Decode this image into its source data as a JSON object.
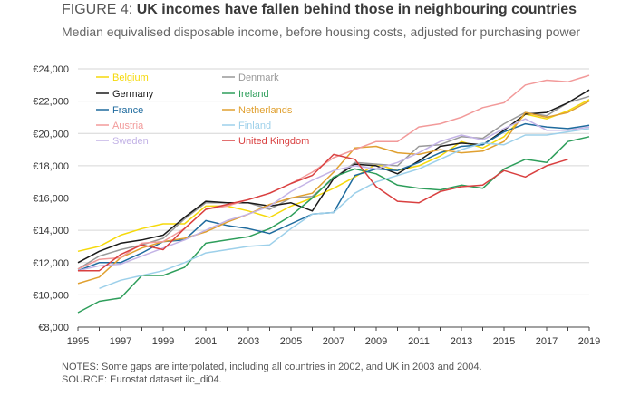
{
  "figure": {
    "number": "FIGURE 4:",
    "title": "UK incomes have fallen behind those in neighbouring countries",
    "subtitle": "Median equivalised disposable income, before housing costs, adjusted for purchasing power"
  },
  "notes": [
    "NOTES: Some gaps are interpolated, including all countries in 2002, and UK in 2003 and 2004.",
    "SOURCE: Eurostat dataset ilc_di04."
  ],
  "chart_data": {
    "type": "line",
    "title": "UK incomes have fallen behind those in neighbouring countries",
    "subtitle": "Median equivalised disposable income, before housing costs, adjusted for purchasing power",
    "xlabel": "",
    "ylabel": "",
    "xlim": [
      1995,
      2019
    ],
    "ylim": [
      8000,
      24000
    ],
    "x_ticks": [
      1995,
      1997,
      1999,
      2001,
      2003,
      2005,
      2007,
      2009,
      2011,
      2013,
      2015,
      2017,
      2019
    ],
    "y_ticks": [
      8000,
      10000,
      12000,
      14000,
      16000,
      18000,
      20000,
      22000,
      24000
    ],
    "y_tick_labels": [
      "€8,000",
      "€10,000",
      "€12,000",
      "€14,000",
      "€16,000",
      "€18,000",
      "€20,000",
      "€22,000",
      "€24,000"
    ],
    "grid": "horizontal",
    "legend_position": "top-left",
    "series": [
      {
        "name": "Belgium",
        "color": "#f5d90a",
        "x": [
          1995,
          1996,
          1997,
          1998,
          1999,
          2000,
          2001,
          2002,
          2003,
          2004,
          2005,
          2006,
          2007,
          2008,
          2009,
          2010,
          2011,
          2012,
          2013,
          2014,
          2015,
          2016,
          2017,
          2018,
          2019
        ],
        "y": [
          12700,
          13000,
          13700,
          14100,
          14400,
          14400,
          15500,
          15500,
          15200,
          14800,
          15500,
          16000,
          16600,
          17300,
          18100,
          17700,
          18000,
          18600,
          19500,
          19100,
          19800,
          21200,
          20900,
          21400,
          22100
        ]
      },
      {
        "name": "Denmark",
        "color": "#999999",
        "x": [
          1995,
          1996,
          1997,
          1998,
          1999,
          2000,
          2001,
          2002,
          2003,
          2004,
          2005,
          2006,
          2007,
          2008,
          2009,
          2010,
          2011,
          2012,
          2013,
          2014,
          2015,
          2016,
          2017,
          2018,
          2019
        ],
        "y": [
          11600,
          12400,
          12800,
          13100,
          13500,
          14700,
          15700,
          15700,
          15700,
          15300,
          16000,
          16100,
          17200,
          18200,
          18100,
          18000,
          19200,
          19300,
          19800,
          19700,
          20600,
          21300,
          21100,
          21900,
          22300
        ]
      },
      {
        "name": "Germany",
        "color": "#1a1a1a",
        "x": [
          1995,
          1996,
          1997,
          1998,
          1999,
          2000,
          2001,
          2002,
          2003,
          2004,
          2005,
          2006,
          2007,
          2008,
          2009,
          2010,
          2011,
          2012,
          2013,
          2014,
          2015,
          2016,
          2017,
          2018,
          2019
        ],
        "y": [
          12000,
          12700,
          13200,
          13400,
          13700,
          14800,
          15800,
          15700,
          15700,
          15500,
          15700,
          15200,
          17200,
          18100,
          18000,
          17500,
          18300,
          19200,
          19400,
          19300,
          20200,
          21200,
          21300,
          21900,
          22700
        ]
      },
      {
        "name": "Ireland",
        "color": "#2e9e5b",
        "x": [
          1995,
          1996,
          1997,
          1998,
          1999,
          2000,
          2001,
          2002,
          2003,
          2004,
          2005,
          2006,
          2007,
          2008,
          2009,
          2010,
          2011,
          2012,
          2013,
          2014,
          2015,
          2016,
          2017,
          2018,
          2019
        ],
        "y": [
          8900,
          9600,
          9800,
          11200,
          11200,
          11700,
          13200,
          13400,
          13600,
          14100,
          14900,
          16000,
          17300,
          17800,
          17500,
          16800,
          16600,
          16500,
          16800,
          16600,
          17800,
          18400,
          18200,
          19500,
          19800
        ]
      },
      {
        "name": "France",
        "color": "#1f6b9e",
        "x": [
          1995,
          1996,
          1997,
          1998,
          1999,
          2000,
          2001,
          2002,
          2003,
          2004,
          2005,
          2006,
          2007,
          2008,
          2009,
          2010,
          2011,
          2012,
          2013,
          2014,
          2015,
          2016,
          2017,
          2018,
          2019
        ],
        "y": [
          11500,
          12000,
          12000,
          12600,
          13300,
          13400,
          14600,
          14300,
          14100,
          13800,
          14400,
          15000,
          15100,
          17400,
          17800,
          17700,
          18200,
          18800,
          19200,
          19300,
          20100,
          20600,
          20400,
          20300,
          20500
        ]
      },
      {
        "name": "Netherlands",
        "color": "#e0a030",
        "x": [
          1995,
          1996,
          1997,
          1998,
          1999,
          2000,
          2001,
          2002,
          2003,
          2004,
          2005,
          2006,
          2007,
          2008,
          2009,
          2010,
          2011,
          2012,
          2013,
          2014,
          2015,
          2016,
          2017,
          2018,
          2019
        ],
        "y": [
          10700,
          11100,
          12300,
          12900,
          13300,
          13500,
          13900,
          14500,
          15000,
          15600,
          16000,
          16300,
          17600,
          19100,
          19200,
          18800,
          18700,
          19000,
          18800,
          18900,
          19500,
          21300,
          21000,
          21300,
          22000
        ]
      },
      {
        "name": "Austria",
        "color": "#f29a9a",
        "x": [
          1995,
          1996,
          1997,
          1998,
          1999,
          2000,
          2001,
          2002,
          2003,
          2004,
          2005,
          2006,
          2007,
          2008,
          2009,
          2010,
          2011,
          2012,
          2013,
          2014,
          2015,
          2016,
          2017,
          2018,
          2019
        ],
        "y": [
          11600,
          12200,
          12300,
          13200,
          13300,
          14100,
          15300,
          15500,
          15900,
          16300,
          16900,
          17600,
          18500,
          19000,
          19500,
          19500,
          20400,
          20600,
          21000,
          21600,
          21900,
          23000,
          23300,
          23200,
          23600
        ]
      },
      {
        "name": "Finland",
        "color": "#9dd0ea",
        "x": [
          1996,
          1997,
          1998,
          1999,
          2000,
          2001,
          2002,
          2003,
          2004,
          2005,
          2006,
          2007,
          2008,
          2009,
          2010,
          2011,
          2012,
          2013,
          2014,
          2015,
          2016,
          2017,
          2018,
          2019
        ],
        "y": [
          10400,
          10900,
          11200,
          11500,
          12000,
          12600,
          12800,
          13000,
          13100,
          14100,
          15000,
          15100,
          16300,
          17000,
          17400,
          17800,
          18400,
          19000,
          19400,
          19300,
          19900,
          19900,
          20100,
          20300
        ]
      },
      {
        "name": "Sweden",
        "color": "#c3b3e6",
        "x": [
          1995,
          1996,
          1997,
          1998,
          1999,
          2000,
          2001,
          2002,
          2003,
          2004,
          2005,
          2006,
          2007,
          2008,
          2009,
          2010,
          2011,
          2012,
          2013,
          2014,
          2015,
          2016,
          2017,
          2018,
          2019
        ],
        "y": [
          11500,
          11800,
          11900,
          12400,
          12900,
          13400,
          14000,
          14600,
          15000,
          15500,
          16400,
          17100,
          17700,
          18000,
          17800,
          18200,
          18800,
          19500,
          19900,
          19600,
          20300,
          20900,
          20200,
          20200,
          20400
        ]
      },
      {
        "name": "United Kingdom",
        "color": "#d94040",
        "x": [
          1995,
          1996,
          1997,
          1998,
          1999,
          2000,
          2001,
          2002,
          2003,
          2004,
          2005,
          2006,
          2007,
          2008,
          2009,
          2010,
          2011,
          2012,
          2013,
          2014,
          2015,
          2016,
          2017,
          2018
        ],
        "y": [
          11500,
          11500,
          12500,
          13100,
          12800,
          14100,
          15300,
          15600,
          15900,
          16300,
          16900,
          17400,
          18700,
          18400,
          16700,
          15800,
          15700,
          16400,
          16700,
          16800,
          17700,
          17300,
          18000,
          18400
        ]
      }
    ]
  }
}
